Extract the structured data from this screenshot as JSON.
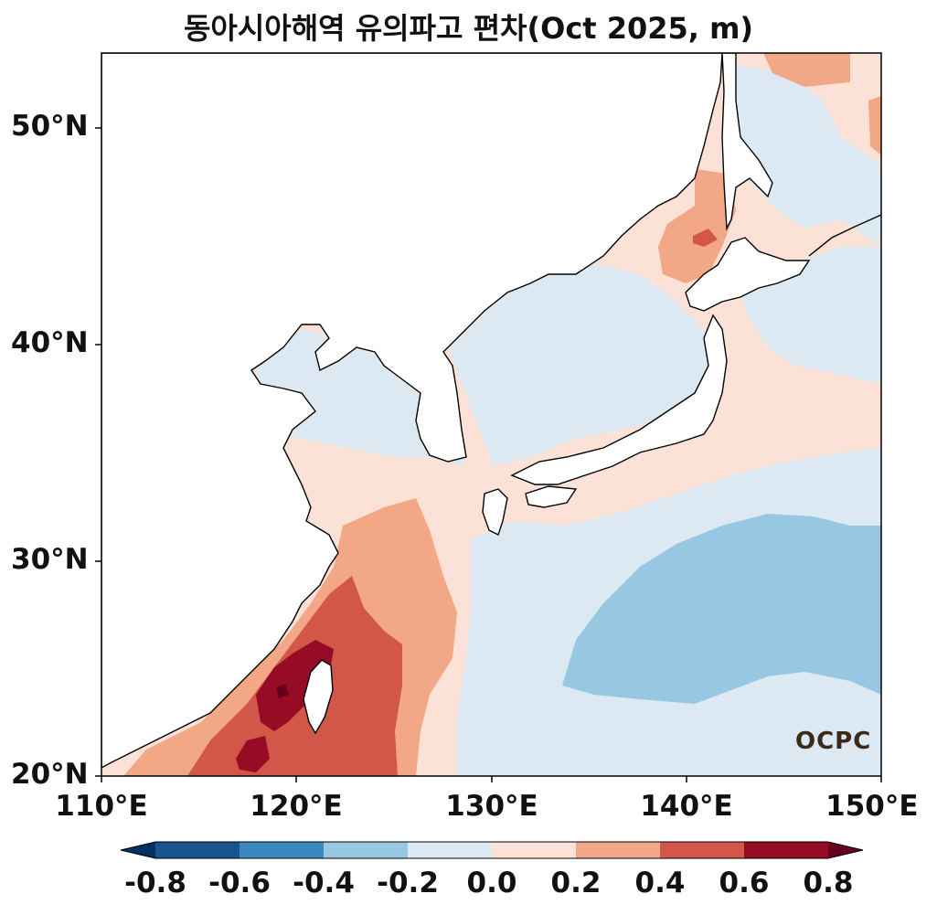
{
  "title": "동아시아해역 유의파고 편차(Oct 2025, m)",
  "map": {
    "lat_ticks": [
      "50°N",
      "40°N",
      "30°N",
      "20°N"
    ],
    "lon_ticks": [
      "110°E",
      "120°E",
      "130°E",
      "140°E",
      "150°E"
    ],
    "extent": {
      "lon": [
        110,
        150
      ],
      "lat": [
        20,
        53.5
      ]
    }
  },
  "colorbar": {
    "tick_labels": [
      "-0.8",
      "-0.6",
      "-0.4",
      "-0.2",
      "0.0",
      "0.2",
      "0.4",
      "0.6",
      "0.8"
    ],
    "colors": [
      "#053061",
      "#18558f",
      "#3a88c0",
      "#98c7e2",
      "#dce9f2",
      "#fbe1d6",
      "#f2a887",
      "#d25748",
      "#970c25",
      "#67001f"
    ],
    "extend": "both"
  },
  "logo": "OCPC"
}
